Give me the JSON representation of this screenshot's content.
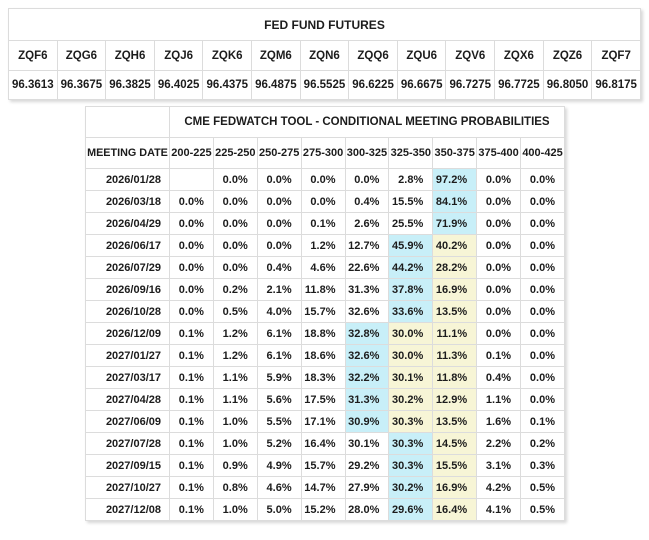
{
  "chart_data": [
    {
      "type": "table",
      "title": "FED FUND FUTURES",
      "columns": [
        "ZQF6",
        "ZQG6",
        "ZQH6",
        "ZQJ6",
        "ZQK6",
        "ZQM6",
        "ZQN6",
        "ZQQ6",
        "ZQU6",
        "ZQV6",
        "ZQX6",
        "ZQZ6",
        "ZQF7"
      ],
      "values": [
        "96.3613",
        "96.3675",
        "96.3825",
        "96.4025",
        "96.4375",
        "96.4875",
        "96.5525",
        "96.6225",
        "96.6675",
        "96.7275",
        "96.7725",
        "96.8050",
        "96.8175"
      ]
    },
    {
      "type": "table",
      "title": "CME FEDWATCH TOOL - CONDITIONAL MEETING PROBABILITIES",
      "date_header": "MEETING DATE",
      "rate_columns": [
        "200-225",
        "225-250",
        "250-275",
        "275-300",
        "300-325",
        "325-350",
        "350-375",
        "375-400",
        "400-425"
      ],
      "highlight_colors": {
        "highest_probability": "#c8eff8",
        "current_target_range": "#f7f5d6"
      },
      "rows": [
        {
          "date": "2026/01/28",
          "values": [
            "",
            "0.0%",
            "0.0%",
            "0.0%",
            "0.0%",
            "2.8%",
            "97.2%",
            "0.0%",
            "0.0%"
          ],
          "blue": [
            6
          ],
          "yellow": []
        },
        {
          "date": "2026/03/18",
          "values": [
            "0.0%",
            "0.0%",
            "0.0%",
            "0.0%",
            "0.4%",
            "15.5%",
            "84.1%",
            "0.0%",
            "0.0%"
          ],
          "blue": [
            6
          ],
          "yellow": []
        },
        {
          "date": "2026/04/29",
          "values": [
            "0.0%",
            "0.0%",
            "0.0%",
            "0.1%",
            "2.6%",
            "25.5%",
            "71.9%",
            "0.0%",
            "0.0%"
          ],
          "blue": [
            6
          ],
          "yellow": []
        },
        {
          "date": "2026/06/17",
          "values": [
            "0.0%",
            "0.0%",
            "0.0%",
            "1.2%",
            "12.7%",
            "45.9%",
            "40.2%",
            "0.0%",
            "0.0%"
          ],
          "blue": [
            5
          ],
          "yellow": [
            6
          ]
        },
        {
          "date": "2026/07/29",
          "values": [
            "0.0%",
            "0.0%",
            "0.4%",
            "4.6%",
            "22.6%",
            "44.2%",
            "28.2%",
            "0.0%",
            "0.0%"
          ],
          "blue": [
            5
          ],
          "yellow": [
            6
          ]
        },
        {
          "date": "2026/09/16",
          "values": [
            "0.0%",
            "0.2%",
            "2.1%",
            "11.8%",
            "31.3%",
            "37.8%",
            "16.9%",
            "0.0%",
            "0.0%"
          ],
          "blue": [
            5
          ],
          "yellow": [
            6
          ]
        },
        {
          "date": "2026/10/28",
          "values": [
            "0.0%",
            "0.5%",
            "4.0%",
            "15.7%",
            "32.6%",
            "33.6%",
            "13.5%",
            "0.0%",
            "0.0%"
          ],
          "blue": [
            5
          ],
          "yellow": [
            6
          ]
        },
        {
          "date": "2026/12/09",
          "values": [
            "0.1%",
            "1.2%",
            "6.1%",
            "18.8%",
            "32.8%",
            "30.0%",
            "11.1%",
            "0.0%",
            "0.0%"
          ],
          "blue": [
            4
          ],
          "yellow": [
            5,
            6
          ]
        },
        {
          "date": "2027/01/27",
          "values": [
            "0.1%",
            "1.2%",
            "6.1%",
            "18.6%",
            "32.6%",
            "30.0%",
            "11.3%",
            "0.1%",
            "0.0%"
          ],
          "blue": [
            4
          ],
          "yellow": [
            5,
            6
          ]
        },
        {
          "date": "2027/03/17",
          "values": [
            "0.1%",
            "1.1%",
            "5.9%",
            "18.3%",
            "32.2%",
            "30.1%",
            "11.8%",
            "0.4%",
            "0.0%"
          ],
          "blue": [
            4
          ],
          "yellow": [
            5,
            6
          ]
        },
        {
          "date": "2027/04/28",
          "values": [
            "0.1%",
            "1.1%",
            "5.6%",
            "17.5%",
            "31.3%",
            "30.2%",
            "12.9%",
            "1.1%",
            "0.0%"
          ],
          "blue": [
            4
          ],
          "yellow": [
            5,
            6
          ]
        },
        {
          "date": "2027/06/09",
          "values": [
            "0.1%",
            "1.0%",
            "5.5%",
            "17.1%",
            "30.9%",
            "30.3%",
            "13.5%",
            "1.6%",
            "0.1%"
          ],
          "blue": [
            4
          ],
          "yellow": [
            5,
            6
          ]
        },
        {
          "date": "2027/07/28",
          "values": [
            "0.1%",
            "1.0%",
            "5.2%",
            "16.4%",
            "30.1%",
            "30.3%",
            "14.5%",
            "2.2%",
            "0.2%"
          ],
          "blue": [
            5
          ],
          "yellow": [
            6
          ]
        },
        {
          "date": "2027/09/15",
          "values": [
            "0.1%",
            "0.9%",
            "4.9%",
            "15.7%",
            "29.2%",
            "30.3%",
            "15.5%",
            "3.1%",
            "0.3%"
          ],
          "blue": [
            5
          ],
          "yellow": [
            6
          ]
        },
        {
          "date": "2027/10/27",
          "values": [
            "0.1%",
            "0.8%",
            "4.6%",
            "14.7%",
            "27.9%",
            "30.2%",
            "16.9%",
            "4.2%",
            "0.5%"
          ],
          "blue": [
            5
          ],
          "yellow": [
            6
          ]
        },
        {
          "date": "2027/12/08",
          "values": [
            "0.1%",
            "1.0%",
            "5.0%",
            "15.2%",
            "28.0%",
            "29.6%",
            "16.4%",
            "4.1%",
            "0.5%"
          ],
          "blue": [
            5
          ],
          "yellow": [
            6
          ]
        }
      ]
    }
  ]
}
